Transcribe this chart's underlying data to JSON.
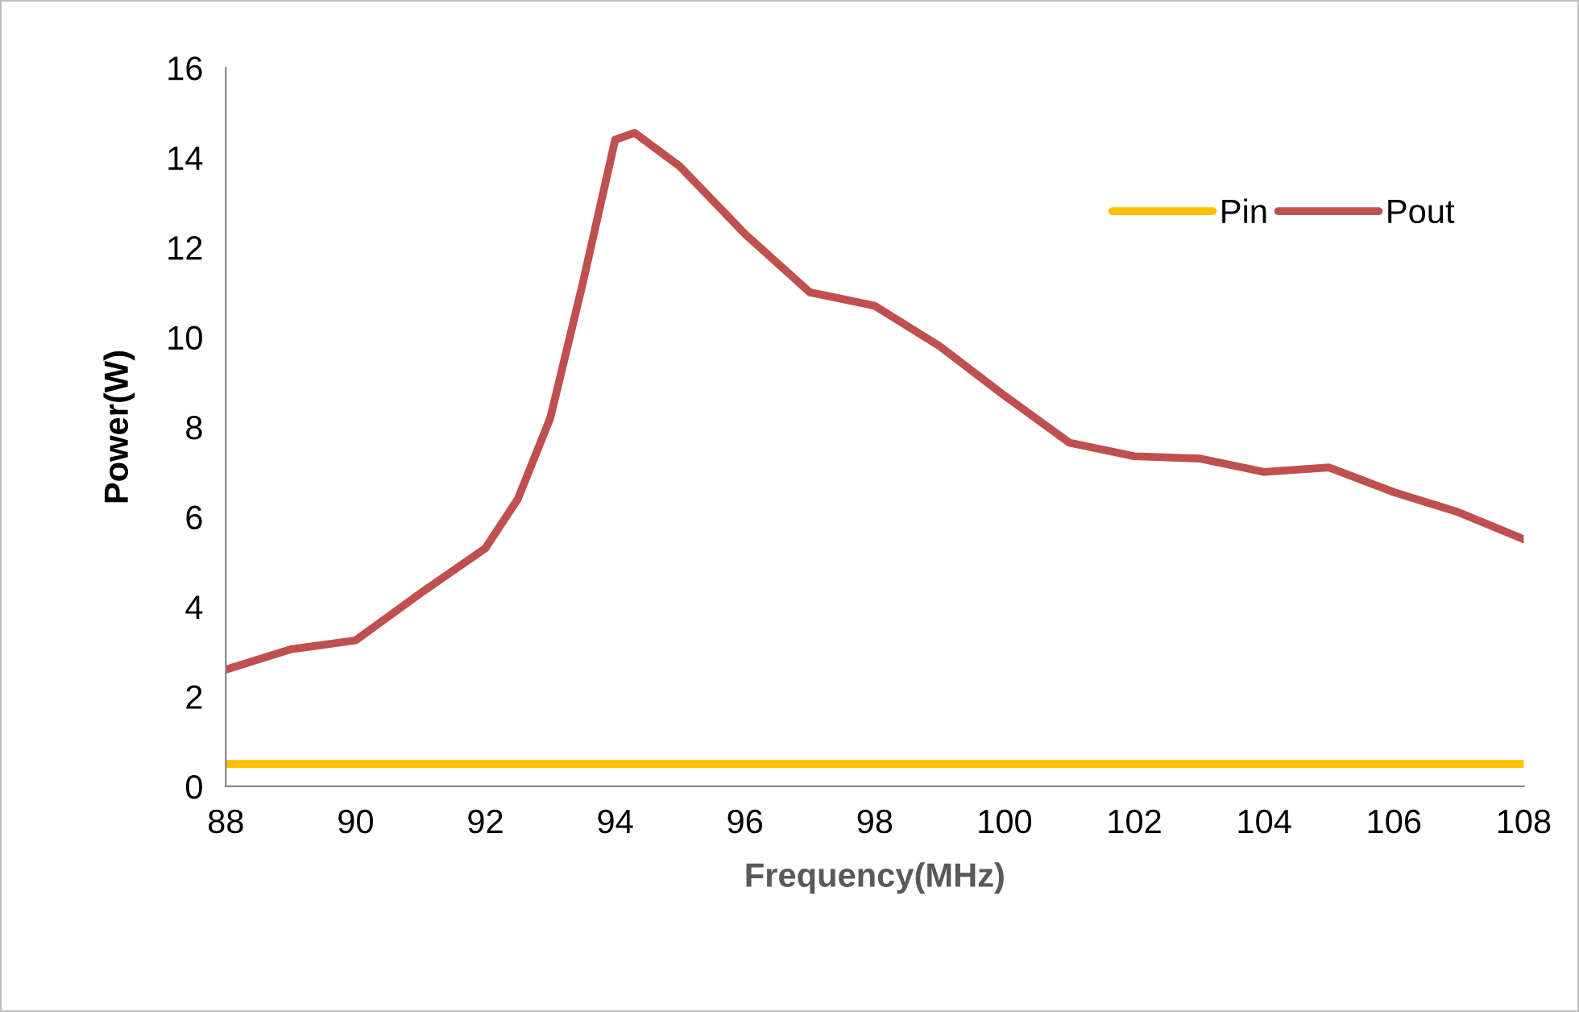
{
  "chart_data": {
    "type": "line",
    "xlabel": "Frequency(MHz)",
    "ylabel": "Power(W)",
    "xlim": [
      88,
      108
    ],
    "xticks": [
      88,
      90,
      92,
      94,
      96,
      98,
      100,
      102,
      104,
      106,
      108
    ],
    "ylim": [
      0,
      16
    ],
    "yticks": [
      0,
      2,
      4,
      6,
      8,
      10,
      12,
      14,
      16
    ],
    "grid": false,
    "legend": "top right",
    "marker": "none",
    "line_style": "solid",
    "series": [
      {
        "name": "Pin",
        "color": "#ffc000",
        "x": [
          88,
          90,
          92,
          94,
          96,
          98,
          100,
          102,
          104,
          106,
          108
        ],
        "values": [
          0.5,
          0.5,
          0.5,
          0.5,
          0.5,
          0.5,
          0.5,
          0.5,
          0.5,
          0.5,
          0.5
        ]
      },
      {
        "name": "Pout",
        "color": "#c0504d",
        "x": [
          88,
          89,
          90,
          91,
          92,
          92.5,
          93,
          93.5,
          94,
          94.3,
          95,
          96,
          97,
          98,
          99,
          100,
          101,
          102,
          103,
          104,
          105,
          106,
          107,
          108
        ],
        "values": [
          2.6,
          3.05,
          3.25,
          4.3,
          5.3,
          6.4,
          8.2,
          11.2,
          14.4,
          14.55,
          13.8,
          12.3,
          11.0,
          10.7,
          9.8,
          8.7,
          7.65,
          7.35,
          7.3,
          7.0,
          7.1,
          6.55,
          6.1,
          5.5
        ]
      }
    ]
  }
}
